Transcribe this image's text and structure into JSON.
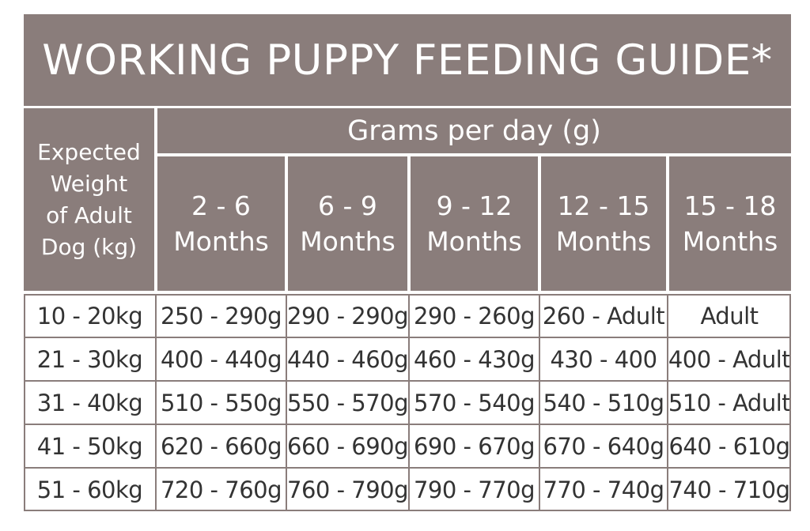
{
  "title": "WORKING PUPPY FEEDING GUIDE*",
  "header": {
    "weight_label": "Expected\nWeight\nof Adult\nDog (kg)",
    "grams_label": "Grams per day (g)",
    "months": [
      "2 - 6\nMonths",
      "6 - 9\nMonths",
      "9 - 12\nMonths",
      "12 - 15\nMonths",
      "15 - 18\nMonths"
    ]
  },
  "rows": [
    {
      "weight": "10 - 20kg",
      "values": [
        "250 - 290g",
        "290 - 290g",
        "290 - 260g",
        "260 - Adult",
        "Adult"
      ]
    },
    {
      "weight": "21 - 30kg",
      "values": [
        "400 - 440g",
        "440 - 460g",
        "460 - 430g",
        "430 - 400",
        "400 - Adult"
      ]
    },
    {
      "weight": "31 - 40kg",
      "values": [
        "510 - 550g",
        "550 - 570g",
        "570 - 540g",
        "540 - 510g",
        "510 - Adult"
      ]
    },
    {
      "weight": "41 - 50kg",
      "values": [
        "620 - 660g",
        "660 - 690g",
        "690 - 670g",
        "670 - 640g",
        "640 - 610g"
      ]
    },
    {
      "weight": "51 - 60kg",
      "values": [
        "720 - 760g",
        "760 - 790g",
        "790 - 770g",
        "770 - 740g",
        "740 - 710g"
      ]
    }
  ],
  "colors": {
    "header_bg": "#8a7d7b",
    "header_text": "#ffffff",
    "cell_text": "#333333",
    "border": "#8a7d7b"
  }
}
